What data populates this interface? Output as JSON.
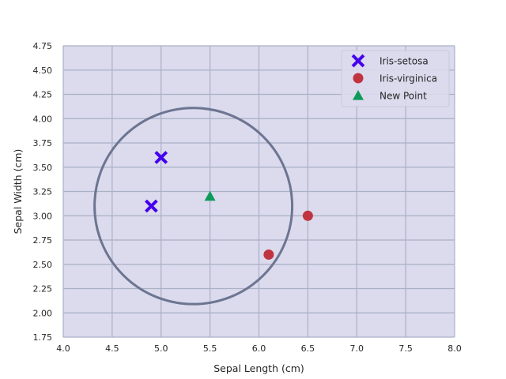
{
  "chart_data": {
    "type": "scatter",
    "title": "",
    "xlabel": "Sepal Length (cm)",
    "ylabel": "Sepal Width (cm)",
    "xlim": [
      4.0,
      8.0
    ],
    "ylim": [
      1.75,
      4.75
    ],
    "x_ticks": [
      "4.0",
      "4.5",
      "5.0",
      "5.5",
      "6.0",
      "6.5",
      "7.0",
      "7.5",
      "8.0"
    ],
    "y_ticks": [
      "1.75",
      "2.00",
      "2.25",
      "2.50",
      "2.75",
      "3.00",
      "3.25",
      "3.50",
      "3.75",
      "4.00",
      "4.25",
      "4.50",
      "4.75"
    ],
    "grid": true,
    "legend_position": "top-right",
    "series": [
      {
        "name": "Iris-setosa",
        "marker": "x",
        "color": "#4400ee",
        "points": [
          [
            5.0,
            3.6
          ],
          [
            4.9,
            3.1
          ]
        ]
      },
      {
        "name": "Iris-virginica",
        "marker": "circle",
        "color": "#c0343f",
        "points": [
          [
            6.5,
            3.0
          ],
          [
            6.1,
            2.6
          ]
        ]
      },
      {
        "name": "New Point",
        "marker": "triangle",
        "color": "#0f9a5a",
        "points": [
          [
            5.5,
            3.2
          ]
        ]
      }
    ],
    "annotations": [
      {
        "type": "circle",
        "center": [
          5.33,
          3.1
        ],
        "radius": 1.01,
        "color": "#6c7591"
      }
    ]
  }
}
